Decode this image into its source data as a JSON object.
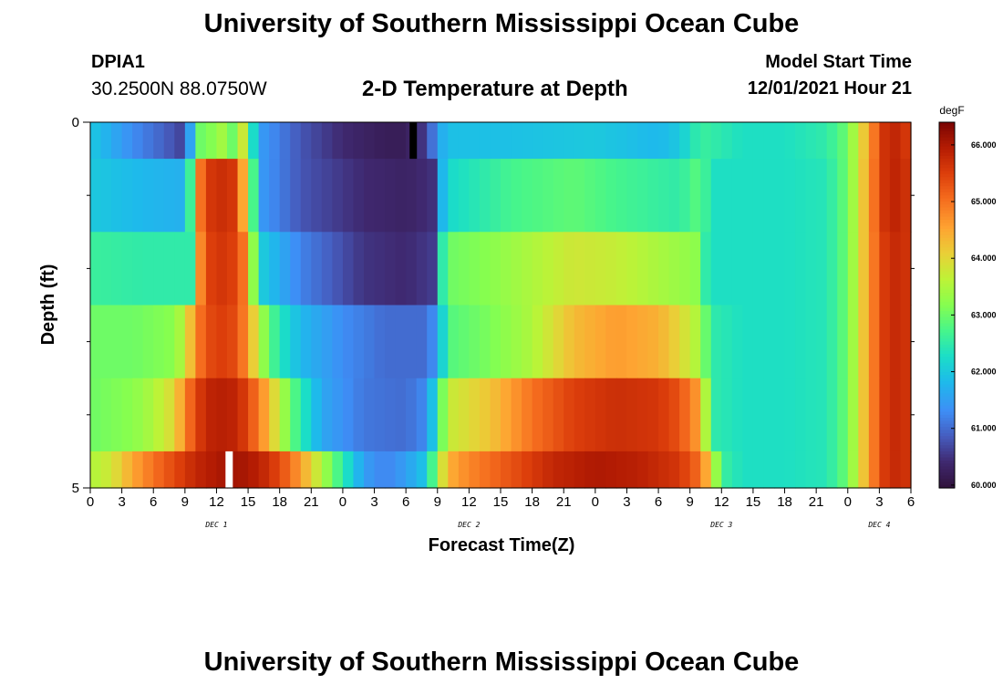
{
  "page": {
    "title": "University of Southern Mississippi Ocean Cube",
    "station_id": "DPIA1",
    "coords": "30.2500N  88.0750W",
    "subtitle": "2-D Temperature at Depth",
    "model_start_label": "Model Start Time",
    "model_start_value": "12/01/2021 Hour 21",
    "bottom_title": "University of Southern Mississippi Ocean Cube"
  },
  "chart_data": {
    "type": "heatmap",
    "title": "2-D Temperature at Depth",
    "xlabel": "Forecast Time(Z)",
    "ylabel": "Depth (ft)",
    "units": "degF",
    "x_range_hours": [
      0,
      78
    ],
    "x_tick_labels": [
      "0",
      "3",
      "6",
      "9",
      "12",
      "15",
      "18",
      "21",
      "0",
      "3",
      "6",
      "9",
      "12",
      "15",
      "18",
      "21",
      "0",
      "3",
      "6",
      "9",
      "12",
      "15",
      "18",
      "21",
      "0",
      "3",
      "6"
    ],
    "day_labels": [
      {
        "label": "DEC 1",
        "hour": 12
      },
      {
        "label": "DEC 2",
        "hour": 36
      },
      {
        "label": "DEC 3",
        "hour": 60
      },
      {
        "label": "DEC 4",
        "hour": 75
      }
    ],
    "y_range": [
      0,
      5
    ],
    "y_tick_labels": [
      {
        "value": 0,
        "label": "0"
      },
      {
        "value": 5,
        "label": "5"
      }
    ],
    "colorbar": {
      "label": "degF",
      "min": 59.95,
      "max": 66.4,
      "ticks": [
        "60.000",
        "61.000",
        "62.000",
        "63.000",
        "64.000",
        "65.000",
        "66.000"
      ]
    },
    "layers": [
      {
        "depth_top": 0,
        "depth_bottom": 0.5,
        "times": [
          0,
          4,
          7,
          9,
          10,
          11,
          12,
          13,
          13.5,
          14,
          15,
          16,
          20,
          24,
          28,
          30,
          32,
          33,
          34,
          40,
          48,
          54,
          56,
          58,
          62,
          66,
          70,
          72,
          73,
          74,
          75,
          76,
          78
        ],
        "temps": [
          62.0,
          61.3,
          60.9,
          60.6,
          62.5,
          63.5,
          62.8,
          64.0,
          63.0,
          64.5,
          63.0,
          61.5,
          60.8,
          60.4,
          60.2,
          60.2,
          60.6,
          61.5,
          61.9,
          61.9,
          62.0,
          61.8,
          62.0,
          62.6,
          62.3,
          62.3,
          62.5,
          63.0,
          63.8,
          64.5,
          65.4,
          65.9,
          65.5
        ]
      },
      {
        "depth_top": 0.5,
        "depth_bottom": 1.5,
        "times": [
          0,
          5,
          9,
          9.7,
          10.5,
          11.5,
          12.5,
          13.5,
          14.5,
          15.3,
          16.5,
          20,
          26,
          30,
          33,
          33.5,
          34,
          40,
          46,
          50,
          56,
          58,
          59,
          62,
          66,
          70,
          72,
          73,
          74,
          75,
          76,
          78
        ],
        "temps": [
          62.0,
          61.8,
          61.7,
          63.0,
          65.0,
          65.6,
          65.7,
          65.6,
          64.5,
          63.0,
          61.4,
          60.8,
          60.4,
          60.3,
          60.5,
          61.8,
          62.2,
          62.7,
          62.9,
          62.7,
          62.5,
          62.9,
          62.3,
          62.3,
          62.3,
          62.4,
          63.0,
          63.8,
          64.6,
          65.4,
          65.9,
          65.6
        ]
      },
      {
        "depth_top": 1.5,
        "depth_bottom": 2.5,
        "times": [
          0,
          5,
          9.5,
          10.5,
          11.5,
          12.5,
          13.5,
          14.5,
          15.3,
          16.5,
          20,
          26,
          30,
          33,
          33.5,
          34,
          38,
          42,
          46,
          50,
          55,
          58,
          58.5,
          59,
          62,
          66,
          70,
          72,
          73,
          74,
          75,
          76,
          78
        ],
        "temps": [
          62.6,
          62.5,
          62.5,
          64.8,
          65.5,
          65.6,
          65.5,
          65.0,
          63.5,
          62.0,
          61.2,
          60.5,
          60.4,
          60.6,
          62.5,
          63.0,
          63.2,
          63.5,
          63.8,
          63.7,
          63.4,
          63.2,
          62.5,
          62.3,
          62.3,
          62.3,
          62.4,
          63.0,
          63.8,
          64.6,
          65.3,
          65.8,
          65.6
        ]
      },
      {
        "depth_top": 2.5,
        "depth_bottom": 3.5,
        "times": [
          0,
          4,
          8,
          9,
          10,
          11,
          12,
          13,
          14,
          15,
          16,
          17,
          18,
          20,
          24,
          28,
          32,
          33,
          34,
          38,
          42,
          46,
          50,
          54,
          56,
          58,
          59,
          62,
          66,
          70,
          72,
          73,
          74,
          75,
          76,
          78
        ],
        "temps": [
          63.0,
          63.0,
          63.2,
          63.7,
          64.8,
          65.3,
          65.5,
          65.5,
          65.3,
          64.6,
          63.6,
          62.9,
          62.4,
          61.8,
          61.3,
          61.0,
          61.0,
          61.5,
          62.8,
          63.1,
          63.5,
          64.3,
          64.6,
          64.4,
          64.0,
          63.4,
          62.5,
          62.3,
          62.3,
          62.4,
          63.0,
          63.8,
          64.6,
          65.3,
          65.8,
          65.6
        ]
      },
      {
        "depth_top": 3.5,
        "depth_bottom": 4.5,
        "times": [
          0,
          4,
          6,
          8,
          9,
          10,
          11,
          12,
          13,
          14,
          15,
          16,
          17,
          18,
          19,
          20,
          22,
          26,
          30,
          32,
          33,
          34,
          38,
          42,
          46,
          50,
          54,
          56,
          58,
          59,
          62,
          66,
          70,
          72,
          73,
          74,
          75,
          76,
          78
        ],
        "temps": [
          63.0,
          63.2,
          63.5,
          64.0,
          64.8,
          65.4,
          65.8,
          65.9,
          65.9,
          65.8,
          65.4,
          64.9,
          64.3,
          63.6,
          63.0,
          62.5,
          61.6,
          61.1,
          61.0,
          61.3,
          62.5,
          63.7,
          64.2,
          65.0,
          65.5,
          65.7,
          65.6,
          65.3,
          64.5,
          62.5,
          62.3,
          62.3,
          62.4,
          63.0,
          63.8,
          64.6,
          65.3,
          65.8,
          65.6
        ]
      },
      {
        "depth_top": 4.5,
        "depth_bottom": 5,
        "times": [
          0,
          2,
          4,
          6,
          8,
          10,
          12,
          14,
          16,
          18,
          20,
          22,
          24,
          26,
          28,
          30,
          32,
          33,
          34,
          36,
          40,
          44,
          48,
          52,
          56,
          58,
          59,
          60,
          62,
          66,
          70,
          72,
          73,
          74,
          75,
          76,
          78
        ],
        "temps": [
          63.5,
          63.8,
          64.5,
          65.0,
          65.4,
          65.8,
          66.0,
          66.1,
          65.9,
          65.4,
          64.6,
          63.5,
          62.5,
          61.5,
          61.2,
          61.5,
          62.0,
          63.4,
          64.4,
          64.8,
          65.3,
          65.8,
          66.0,
          65.9,
          65.6,
          65.0,
          64.0,
          62.6,
          62.3,
          62.3,
          62.4,
          63.0,
          63.8,
          64.6,
          65.3,
          65.8,
          65.6
        ]
      }
    ],
    "missing_markers": [
      {
        "hour": 30.7,
        "depth_top": 0,
        "depth_bottom": 0.5,
        "color": "#000000"
      },
      {
        "hour": 13.2,
        "depth_top": 4.5,
        "depth_bottom": 5,
        "color": "#ffffff"
      }
    ]
  }
}
